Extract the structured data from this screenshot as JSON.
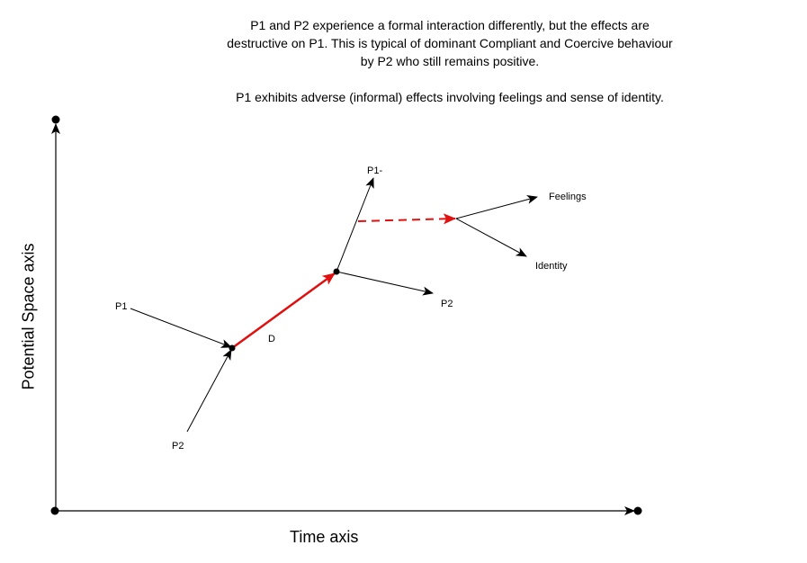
{
  "caption": {
    "paragraph1": "P1 and P2 experience a formal interaction differently, but the effects are destructive on P1. This is typical of dominant Compliant and Coercive behaviour by P2 who still remains positive.",
    "paragraph2": "P1 exhibits adverse (informal) effects involving feelings and sense of identity."
  },
  "axes": {
    "x_label": "Time axis",
    "y_label": "Potential Space axis"
  },
  "labels": {
    "p1_in": "P1",
    "p2_in": "P2",
    "d": "D",
    "p1_out": "P1-",
    "p2_out": "P2",
    "feelings": "Feelings",
    "identity": "Identity"
  },
  "colors": {
    "red": "#e01010",
    "black": "#000000"
  }
}
